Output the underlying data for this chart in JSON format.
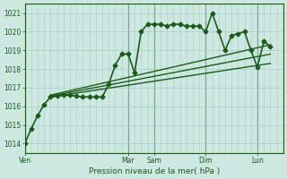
{
  "xlabel": "Pression niveau de la mer( hPa )",
  "background_color": "#cce8e0",
  "grid_color": "#aacccc",
  "line_color": "#1a5c1a",
  "ylim": [
    1013.5,
    1021.5
  ],
  "yticks": [
    1014,
    1015,
    1016,
    1017,
    1018,
    1019,
    1020,
    1021
  ],
  "xlim": [
    0,
    120
  ],
  "day_labels": [
    "Ven",
    "Mar",
    "Sam",
    "Dim",
    "Lun"
  ],
  "day_positions": [
    0,
    48,
    60,
    84,
    108
  ],
  "series": [
    {
      "x": [
        0,
        3,
        6,
        9,
        12,
        15,
        18,
        21,
        24,
        27,
        30,
        33,
        36,
        39,
        42,
        45,
        48,
        51,
        54,
        57,
        60,
        63,
        66,
        69,
        72,
        75,
        78,
        81,
        84,
        87,
        90,
        93,
        96,
        99,
        102,
        105,
        108,
        111,
        114
      ],
      "y": [
        1014.0,
        1014.8,
        1015.5,
        1016.1,
        1016.5,
        1016.55,
        1016.6,
        1016.6,
        1016.55,
        1016.5,
        1016.5,
        1016.5,
        1016.5,
        1017.2,
        1018.2,
        1018.8,
        1018.8,
        1017.8,
        1020.0,
        1020.4,
        1020.4,
        1020.4,
        1020.3,
        1020.4,
        1020.4,
        1020.3,
        1020.3,
        1020.3,
        1020.0,
        1021.0,
        1020.0,
        1019.0,
        1019.8,
        1019.9,
        1020.0,
        1019.0,
        1018.1,
        1019.5,
        1019.2
      ],
      "marker": "D",
      "markersize": 2.5,
      "linewidth": 1.2
    },
    {
      "x": [
        12,
        114
      ],
      "y": [
        1016.5,
        1018.3
      ],
      "marker": null,
      "linewidth": 1.0
    },
    {
      "x": [
        12,
        114
      ],
      "y": [
        1016.55,
        1018.8
      ],
      "marker": null,
      "linewidth": 1.0
    },
    {
      "x": [
        12,
        114
      ],
      "y": [
        1016.6,
        1019.3
      ],
      "marker": null,
      "linewidth": 1.0
    }
  ]
}
